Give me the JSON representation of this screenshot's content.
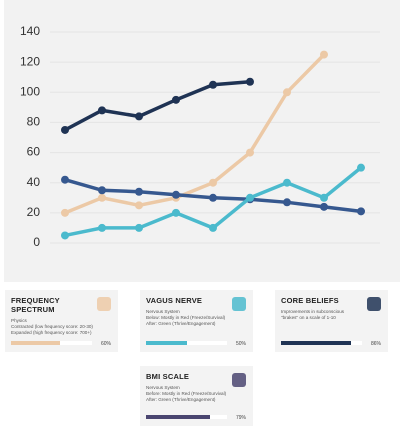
{
  "chart_data": {
    "type": "line",
    "categories": [
      null,
      null,
      null,
      null,
      null,
      null,
      null,
      null,
      null
    ],
    "series": [
      {
        "color": "#1f3354",
        "values": [
          75,
          88,
          84,
          95,
          105,
          107,
          null,
          null,
          null
        ]
      },
      {
        "color": "#ecc9a6",
        "values": [
          20,
          30,
          25,
          30,
          40,
          60,
          100,
          125,
          null
        ]
      },
      {
        "color": "#36588f",
        "values": [
          42,
          35,
          34,
          32,
          30,
          29,
          27,
          24,
          21
        ]
      },
      {
        "color": "#4bbacd",
        "values": [
          5,
          10,
          10,
          20,
          10,
          30,
          40,
          30,
          50
        ]
      }
    ],
    "ylim": [
      0,
      140
    ],
    "yticks": [
      0,
      20,
      40,
      60,
      80,
      100,
      120,
      140
    ],
    "grid": true
  },
  "cards": [
    {
      "title": "FREQUENCY SPECTRUM",
      "lines": [
        "Physics",
        "Contracted (low frequency score: 20-30)",
        "Expanded (high frequency score: 700+)"
      ],
      "value": 60,
      "value_label": "60%",
      "color": "#ecc9a6"
    },
    {
      "title": "VAGUS NERVE",
      "lines": [
        "Nervous System",
        "Below: Mostly in Red (Freeze/Survival)",
        "After: Green (Thrive/Engagement)"
      ],
      "value": 50,
      "value_label": "50%",
      "color": "#4bbacd"
    },
    {
      "title": "CORE BELIEFS",
      "lines": [
        "Improvements in subconscious",
        "\"brakes\" on a scale of 1-10"
      ],
      "value": 86,
      "value_label": "86%",
      "color": "#1f3354"
    },
    {
      "title": "BMI SCALE",
      "lines": [
        "Nervous System",
        "Before: Mostly in Red (Freeze/Survival)",
        "After: Green (Thrive/Engagement)"
      ],
      "value": 79,
      "value_label": "79%",
      "color": "#4a4570"
    }
  ]
}
